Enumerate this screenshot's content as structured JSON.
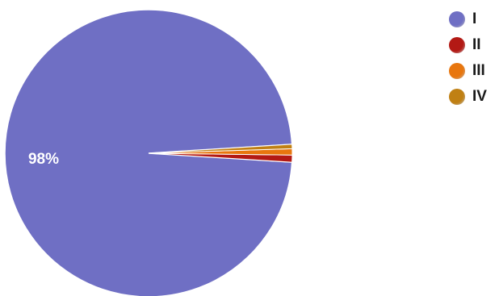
{
  "chart_data": {
    "type": "pie",
    "categories": [
      "I",
      "II",
      "III",
      "IV"
    ],
    "values": [
      98,
      0.8,
      0.7,
      0.5
    ],
    "colors": [
      "#6f6fc4",
      "#b31914",
      "#e8760e",
      "#c08013"
    ],
    "data_labels": [
      {
        "category": "I",
        "text": "98%"
      }
    ],
    "legend_position": "top-right"
  }
}
